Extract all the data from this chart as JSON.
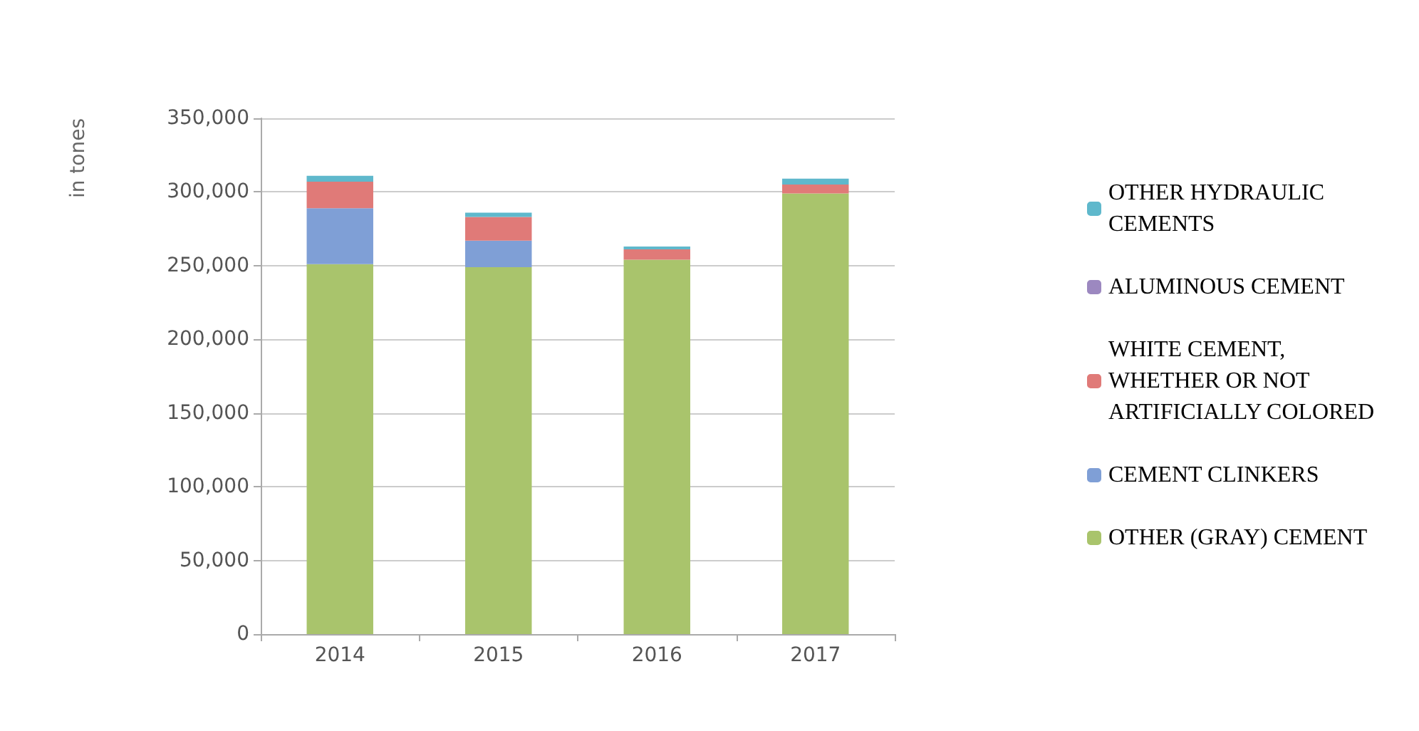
{
  "chart_data": {
    "type": "bar",
    "stacked": true,
    "ylabel": "in tones",
    "categories": [
      "2014",
      "2015",
      "2016",
      "2017"
    ],
    "series": [
      {
        "name": "OTHER (GRAY) CEMENT",
        "color": "#a9c46c",
        "values": [
          251000,
          249000,
          254000,
          299000
        ]
      },
      {
        "name": "CEMENT CLINKERS",
        "color": "#7f9fd6",
        "values": [
          38000,
          18000,
          0,
          0
        ]
      },
      {
        "name": "WHITE CEMENT, WHETHER OR NOT ARTIFICIALLY COLORED",
        "color": "#e07a78",
        "values": [
          18000,
          16000,
          7000,
          6000
        ]
      },
      {
        "name": "ALUMINOUS CEMENT",
        "color": "#9c88c0",
        "values": [
          0,
          0,
          0,
          0
        ]
      },
      {
        "name": "OTHER HYDRAULIC CEMENTS",
        "color": "#5fb8cc",
        "values": [
          4000,
          3000,
          2000,
          4000
        ]
      }
    ],
    "ylim": [
      0,
      350000
    ],
    "yticks": [
      0,
      {
        "value": 50000,
        "label": "50,000"
      },
      {
        "value": 100000,
        "label": "100,000"
      },
      {
        "value": 150000,
        "label": "150,000"
      },
      {
        "value": 200000,
        "label": "200,000"
      },
      {
        "value": 250000,
        "label": "250,000"
      },
      {
        "value": 300000,
        "label": "300,000"
      },
      {
        "value": 350000,
        "label": "350,000"
      }
    ],
    "grid": "y",
    "legend": "right"
  }
}
